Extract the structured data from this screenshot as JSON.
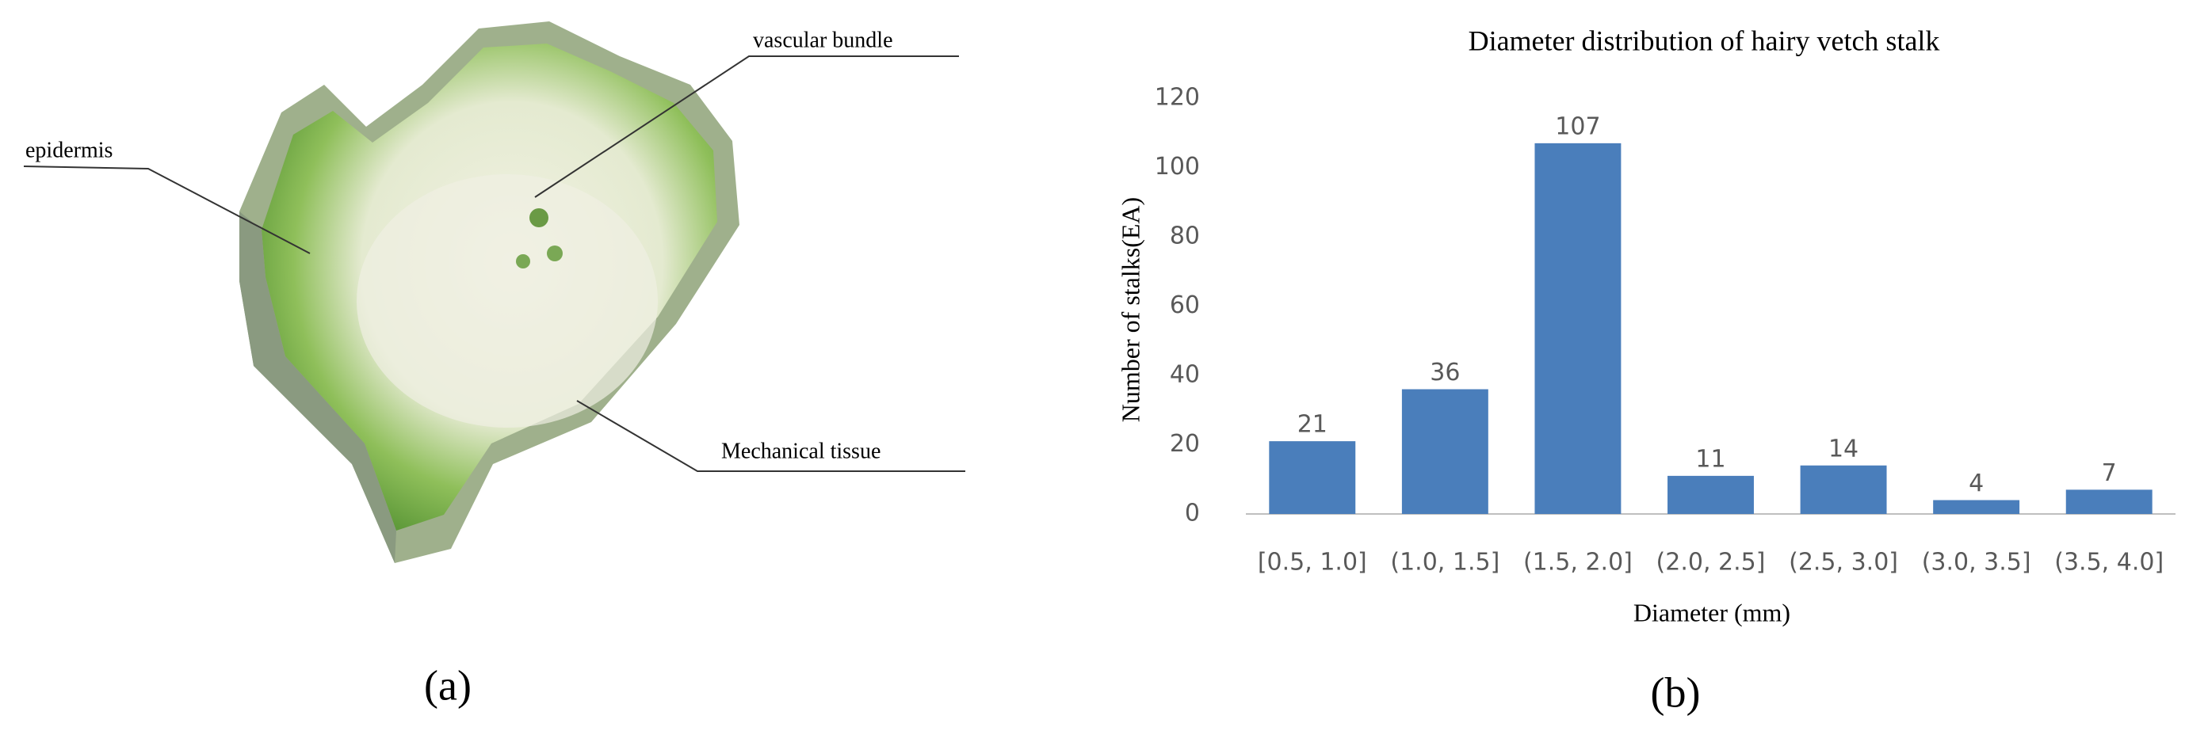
{
  "panel_a": {
    "label": "(a)",
    "annotations": [
      "epidermis",
      "vascular bundle",
      "Mechanical tissue"
    ]
  },
  "chart_data": {
    "type": "bar",
    "panel_label": "(b)",
    "title": "Diameter distribution of hairy vetch stalk",
    "x_label": "Diameter (mm)",
    "y_label": "Number of stalks(EA)",
    "categories": [
      "[0.5, 1.0]",
      "(1.0, 1.5]",
      "(1.5, 2.0]",
      "(2.0, 2.5]",
      "(2.5, 3.0]",
      "(3.0, 3.5]",
      "(3.5, 4.0]"
    ],
    "values": [
      21,
      36,
      107,
      11,
      14,
      4,
      7
    ],
    "color": "#4a7ebb",
    "ylim": [
      0,
      120
    ],
    "yticks": [
      0,
      20,
      40,
      60,
      80,
      100,
      120
    ],
    "grid": false
  }
}
